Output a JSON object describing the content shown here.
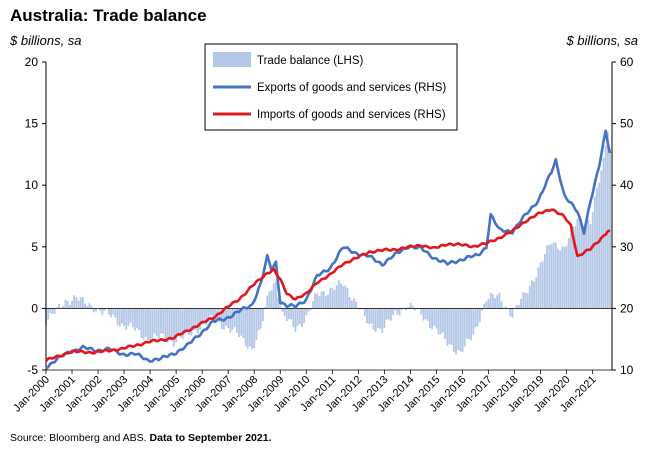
{
  "chart_data": {
    "type": "bar+line",
    "title": "Australia: Trade balance",
    "left_axis_label": "$ billions, sa",
    "right_axis_label": "$ billions, sa",
    "left_ylim": [
      -5,
      20
    ],
    "left_ticks": [
      "-5",
      "0",
      "5",
      "10",
      "15",
      "20"
    ],
    "right_ylim": [
      10,
      60
    ],
    "right_ticks": [
      "10",
      "20",
      "30",
      "40",
      "50",
      "60"
    ],
    "x_start": "2000-01",
    "x_end": "2021-09",
    "x_tick_labels": [
      "Jan-2000",
      "Jan-2001",
      "Jan-2002",
      "Jan-2003",
      "Jan-2004",
      "Jan-2005",
      "Jan-2006",
      "Jan-2007",
      "Jan-2008",
      "Jan-2009",
      "Jan-2010",
      "Jan-2011",
      "Jan-2012",
      "Jan-2013",
      "Jan-2014",
      "Jan-2015",
      "Jan-2016",
      "Jan-2017",
      "Jan-2018",
      "Jan-2019",
      "Jan-2020",
      "Jan-2021"
    ],
    "legend": [
      {
        "label": "Trade balance (LHS)",
        "color": "#b4c7e7",
        "kind": "bar"
      },
      {
        "label": "Exports of goods and services (RHS)",
        "color": "#4472c4",
        "kind": "line"
      },
      {
        "label": "Imports of goods and services (RHS)",
        "color": "#e0171c",
        "kind": "line"
      }
    ],
    "series": [
      {
        "name": "Trade balance (LHS)",
        "axis": "left",
        "keypoints": [
          [
            "2000-01",
            -1.0
          ],
          [
            "2000-06",
            -0.2
          ],
          [
            "2000-10",
            0.6
          ],
          [
            "2001-03",
            0.9
          ],
          [
            "2001-06",
            0.5
          ],
          [
            "2001-10",
            0.2
          ],
          [
            "2002-03",
            -0.3
          ],
          [
            "2002-08",
            -0.7
          ],
          [
            "2002-12",
            -1.3
          ],
          [
            "2003-06",
            -1.7
          ],
          [
            "2003-12",
            -2.5
          ],
          [
            "2004-06",
            -2.3
          ],
          [
            "2004-12",
            -2.7
          ],
          [
            "2005-06",
            -2.2
          ],
          [
            "2005-12",
            -1.5
          ],
          [
            "2006-06",
            -0.9
          ],
          [
            "2006-12",
            -1.5
          ],
          [
            "2007-06",
            -2.2
          ],
          [
            "2007-12",
            -3.3
          ],
          [
            "2008-04",
            -1.8
          ],
          [
            "2008-08",
            1.6
          ],
          [
            "2008-11",
            2.2
          ],
          [
            "2009-02",
            -0.6
          ],
          [
            "2009-08",
            -1.6
          ],
          [
            "2010-01",
            -0.8
          ],
          [
            "2010-06",
            1.2
          ],
          [
            "2010-12",
            1.5
          ],
          [
            "2011-06",
            2.0
          ],
          [
            "2011-12",
            0.5
          ],
          [
            "2012-06",
            -1.4
          ],
          [
            "2012-12",
            -1.7
          ],
          [
            "2013-06",
            -0.5
          ],
          [
            "2013-12",
            0.3
          ],
          [
            "2014-06",
            -0.5
          ],
          [
            "2014-12",
            -1.6
          ],
          [
            "2015-06",
            -2.8
          ],
          [
            "2015-12",
            -3.6
          ],
          [
            "2016-06",
            -2.2
          ],
          [
            "2016-12",
            0.8
          ],
          [
            "2017-06",
            1.0
          ],
          [
            "2017-12",
            -0.6
          ],
          [
            "2018-06",
            1.3
          ],
          [
            "2018-12",
            3.1
          ],
          [
            "2019-06",
            5.5
          ],
          [
            "2019-12",
            4.8
          ],
          [
            "2020-06",
            7.3
          ],
          [
            "2020-12",
            7.0
          ],
          [
            "2021-06",
            12.0
          ],
          [
            "2021-08",
            14.8
          ],
          [
            "2021-09",
            12.6
          ]
        ]
      },
      {
        "name": "Exports of goods and services (RHS)",
        "axis": "right",
        "keypoints": [
          [
            "2000-01",
            10.5
          ],
          [
            "2000-06",
            11.7
          ],
          [
            "2000-12",
            13.0
          ],
          [
            "2001-06",
            13.6
          ],
          [
            "2001-12",
            13.2
          ],
          [
            "2002-06",
            13.4
          ],
          [
            "2002-12",
            12.6
          ],
          [
            "2003-06",
            12.6
          ],
          [
            "2003-12",
            11.6
          ],
          [
            "2004-06",
            11.8
          ],
          [
            "2004-12",
            12.7
          ],
          [
            "2005-06",
            13.9
          ],
          [
            "2005-12",
            15.9
          ],
          [
            "2006-06",
            17.8
          ],
          [
            "2006-12",
            18.4
          ],
          [
            "2007-06",
            19.5
          ],
          [
            "2007-12",
            20.6
          ],
          [
            "2008-04",
            24.0
          ],
          [
            "2008-07",
            28.3
          ],
          [
            "2008-09",
            26.3
          ],
          [
            "2008-11",
            27.5
          ],
          [
            "2009-01",
            21.1
          ],
          [
            "2009-04",
            20.4
          ],
          [
            "2009-08",
            20.3
          ],
          [
            "2010-01",
            21.5
          ],
          [
            "2010-06",
            25.2
          ],
          [
            "2010-12",
            26.6
          ],
          [
            "2011-06",
            29.9
          ],
          [
            "2011-12",
            29.0
          ],
          [
            "2012-06",
            28.4
          ],
          [
            "2012-12",
            27.2
          ],
          [
            "2013-06",
            28.7
          ],
          [
            "2013-12",
            30.1
          ],
          [
            "2014-06",
            29.7
          ],
          [
            "2014-12",
            28.2
          ],
          [
            "2015-06",
            27.2
          ],
          [
            "2015-12",
            27.9
          ],
          [
            "2016-03",
            28.2
          ],
          [
            "2016-08",
            28.6
          ],
          [
            "2016-12",
            30.0
          ],
          [
            "2017-02",
            35.2
          ],
          [
            "2017-06",
            32.7
          ],
          [
            "2017-12",
            32.5
          ],
          [
            "2018-06",
            35.1
          ],
          [
            "2018-12",
            37.6
          ],
          [
            "2019-06",
            42.1
          ],
          [
            "2019-08",
            44.0
          ],
          [
            "2019-12",
            38.4
          ],
          [
            "2020-06",
            35.6
          ],
          [
            "2020-09",
            32.4
          ],
          [
            "2020-12",
            37.5
          ],
          [
            "2021-04",
            43.0
          ],
          [
            "2021-07",
            48.7
          ],
          [
            "2021-09",
            45.3
          ]
        ]
      },
      {
        "name": "Imports of goods and services (RHS)",
        "axis": "right",
        "keypoints": [
          [
            "2000-01",
            11.5
          ],
          [
            "2000-06",
            12.2
          ],
          [
            "2000-12",
            12.9
          ],
          [
            "2001-06",
            13.0
          ],
          [
            "2001-12",
            12.8
          ],
          [
            "2002-06",
            13.2
          ],
          [
            "2002-12",
            13.4
          ],
          [
            "2003-06",
            14.0
          ],
          [
            "2003-12",
            14.5
          ],
          [
            "2004-06",
            14.9
          ],
          [
            "2004-12",
            15.2
          ],
          [
            "2005-06",
            16.4
          ],
          [
            "2005-12",
            17.4
          ],
          [
            "2006-06",
            18.5
          ],
          [
            "2006-12",
            20.0
          ],
          [
            "2007-06",
            21.5
          ],
          [
            "2007-12",
            23.6
          ],
          [
            "2008-04",
            24.8
          ],
          [
            "2008-07",
            25.8
          ],
          [
            "2008-10",
            26.3
          ],
          [
            "2009-01",
            24.6
          ],
          [
            "2009-04",
            22.4
          ],
          [
            "2009-08",
            21.6
          ],
          [
            "2010-01",
            22.3
          ],
          [
            "2010-06",
            24.3
          ],
          [
            "2010-12",
            25.4
          ],
          [
            "2011-06",
            27.3
          ],
          [
            "2011-12",
            28.1
          ],
          [
            "2012-06",
            29.2
          ],
          [
            "2012-12",
            29.4
          ],
          [
            "2013-06",
            29.6
          ],
          [
            "2013-12",
            29.9
          ],
          [
            "2014-06",
            30.3
          ],
          [
            "2014-12",
            29.7
          ],
          [
            "2015-06",
            30.5
          ],
          [
            "2015-12",
            30.3
          ],
          [
            "2016-06",
            30.1
          ],
          [
            "2016-12",
            30.5
          ],
          [
            "2017-06",
            31.5
          ],
          [
            "2017-12",
            32.5
          ],
          [
            "2018-06",
            34.2
          ],
          [
            "2018-12",
            35.3
          ],
          [
            "2019-06",
            36.2
          ],
          [
            "2019-12",
            34.8
          ],
          [
            "2020-03",
            33.4
          ],
          [
            "2020-06",
            28.5
          ],
          [
            "2020-12",
            29.6
          ],
          [
            "2021-06",
            31.8
          ],
          [
            "2021-08",
            32.6
          ],
          [
            "2021-09",
            32.5
          ]
        ]
      }
    ]
  },
  "source_label": "Source: Bloomberg and ABS.",
  "source_bold": "Data to September 2021."
}
